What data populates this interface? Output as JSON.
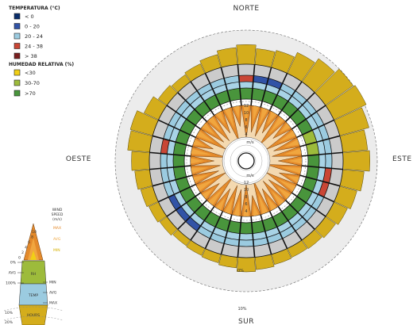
{
  "chart_data": {
    "type": "radial",
    "compass": {
      "north": "NORTE",
      "east": "ESTE",
      "south": "SUR",
      "west": "OESTE"
    },
    "temperature_legend": {
      "title": "TEMPERATURA (°C)",
      "items": [
        {
          "label": "< 0",
          "color": "#0a2d6b"
        },
        {
          "label": "0  -  20",
          "color": "#3153a6"
        },
        {
          "label": "20  -  24",
          "color": "#9bcbe0"
        },
        {
          "label": "24  -  38",
          "color": "#c94635"
        },
        {
          "label": "> 38",
          "color": "#7a1f1f"
        }
      ]
    },
    "humidity_legend": {
      "title": "HUMEDAD RELATIVA (%)",
      "items": [
        {
          "label": "<30",
          "color": "#f1cf15"
        },
        {
          "label": "30-70",
          "color": "#9dbb3b"
        },
        {
          "label": ">70",
          "color": "#49953c"
        }
      ]
    },
    "wind_speed_ticks": {
      "values": [
        "12",
        "10",
        "8",
        "6",
        "4"
      ],
      "unit": "m/s"
    },
    "hours_ticks": {
      "inner": "0%",
      "outer": "10%"
    },
    "sectors": 36,
    "hours": [
      0.55,
      0.45,
      0.5,
      0.65,
      0.8,
      0.95,
      1.0,
      0.85,
      0.7,
      0.75,
      0.6,
      0.5,
      0.42,
      0.35,
      0.3,
      0.28,
      0.3,
      0.35,
      0.4,
      0.3,
      0.25,
      0.22,
      0.2,
      0.25,
      0.3,
      0.35,
      0.42,
      0.5,
      0.62,
      0.65,
      0.45,
      0.3,
      0.25,
      0.3,
      0.38,
      0.48
    ],
    "wind_max": [
      11,
      9,
      10,
      8,
      12,
      7,
      11,
      9,
      10,
      8,
      12,
      7,
      11,
      9,
      10,
      8,
      12,
      7,
      11,
      9,
      10,
      8,
      12,
      7,
      11,
      9,
      10,
      8,
      12,
      7,
      11,
      9,
      10,
      8,
      12,
      7
    ],
    "temp_class": [
      3,
      1,
      1,
      2,
      2,
      2,
      2,
      2,
      2,
      2,
      3,
      3,
      2,
      2,
      2,
      2,
      2,
      2,
      2,
      2,
      2,
      2,
      1,
      1,
      1,
      2,
      2,
      2,
      3,
      2,
      2,
      2,
      2,
      2,
      2,
      2
    ],
    "rh_class": [
      2,
      2,
      2,
      2,
      2,
      2,
      2,
      1,
      1,
      2,
      2,
      2,
      2,
      2,
      2,
      2,
      2,
      2,
      2,
      2,
      2,
      2,
      2,
      2,
      2,
      2,
      2,
      2,
      2,
      2,
      2,
      2,
      2,
      2,
      2,
      2
    ],
    "key": {
      "title_lines": [
        "WIND",
        "SPEED",
        "(m/s)"
      ],
      "speed_ticks": [
        "10",
        "8",
        "6",
        "4",
        "2",
        "0"
      ],
      "band_labels": {
        "max": "MAX",
        "avg": "AVG",
        "min": "MIN"
      },
      "layers": {
        "rh": "RH",
        "temp": "TEMP",
        "hours": "HOURS"
      },
      "left_labels": [
        "0%",
        "AVG",
        "100%"
      ],
      "right_labels": [
        "MIN",
        "AVG",
        "MAX"
      ],
      "hours_ticks": [
        "10%",
        "20%"
      ]
    }
  }
}
